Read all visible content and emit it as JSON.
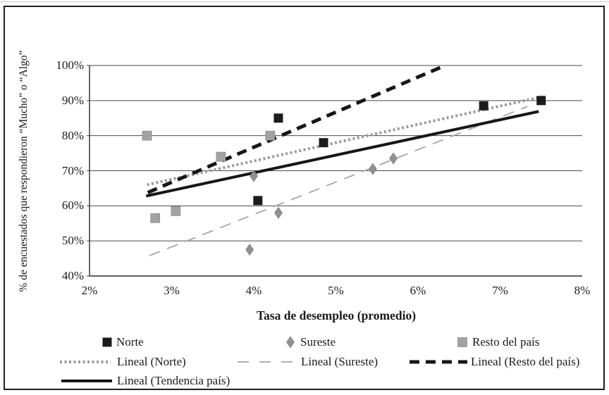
{
  "chart_data": {
    "type": "scatter",
    "title": "",
    "xlabel": "Tasa de desempleo (promedio)",
    "ylabel": "% de encuestados que respondieron “Mucho” o “Algo”",
    "xlim": [
      2,
      8
    ],
    "ylim": [
      40,
      100
    ],
    "x_tick_values": [
      2,
      3,
      4,
      5,
      6,
      7,
      8
    ],
    "x_tick_labels": [
      "2%",
      "3%",
      "4%",
      "5%",
      "6%",
      "7%",
      "8%"
    ],
    "y_tick_values": [
      100,
      90,
      80,
      70,
      60,
      50,
      40
    ],
    "y_tick_labels": [
      "100%",
      "90%",
      "80%",
      "70%",
      "60%",
      "50%",
      "40%"
    ],
    "grid": "horizontal",
    "legend_position": "bottom",
    "series": [
      {
        "name": "Norte",
        "marker": "square",
        "color": "#1c1c1c",
        "points": [
          [
            4.05,
            61.5
          ],
          [
            4.3,
            85
          ],
          [
            4.85,
            78
          ],
          [
            6.8,
            88.5
          ],
          [
            7.5,
            90
          ]
        ]
      },
      {
        "name": "Sureste",
        "marker": "diamond",
        "color": "#8f8f96",
        "points": [
          [
            3.95,
            47.5
          ],
          [
            4.0,
            68.5
          ],
          [
            4.3,
            58
          ],
          [
            5.45,
            70.5
          ],
          [
            5.7,
            73.5
          ]
        ]
      },
      {
        "name": "Resto del país",
        "marker": "square",
        "color": "#a3a3a3",
        "points": [
          [
            2.7,
            80
          ],
          [
            2.8,
            56.5
          ],
          [
            3.05,
            58.5
          ],
          [
            3.6,
            74
          ],
          [
            4.2,
            80
          ]
        ]
      }
    ],
    "trendlines": [
      {
        "name": "Lineal (Norte)",
        "style": "dotted",
        "color": "#9a9a9a",
        "width": 4,
        "dash": "3 3.5",
        "from": [
          2.7,
          66
        ],
        "to": [
          7.55,
          91.3
        ]
      },
      {
        "name": "Lineal (Sureste)",
        "style": "dashed-thin",
        "color": "#a2a2a2",
        "width": 1.7,
        "dash": "16 11",
        "from": [
          2.73,
          45.8
        ],
        "to": [
          7.33,
          88.3
        ]
      },
      {
        "name": "Lineal (Resto del país)",
        "style": "dashed-thick",
        "color": "#161616",
        "width": 5,
        "dash": "14 9",
        "from": [
          2.71,
          63.8
        ],
        "to": [
          6.33,
          100
        ]
      },
      {
        "name": "Lineal (Tendencia país)",
        "style": "solid",
        "color": "#161616",
        "width": 4,
        "dash": "",
        "from": [
          2.69,
          62.8
        ],
        "to": [
          7.47,
          86.9
        ]
      }
    ],
    "colors": {
      "grid": "#4a4a4a",
      "axis": "#2b2b2b",
      "frame": "#1f1f1f"
    }
  }
}
